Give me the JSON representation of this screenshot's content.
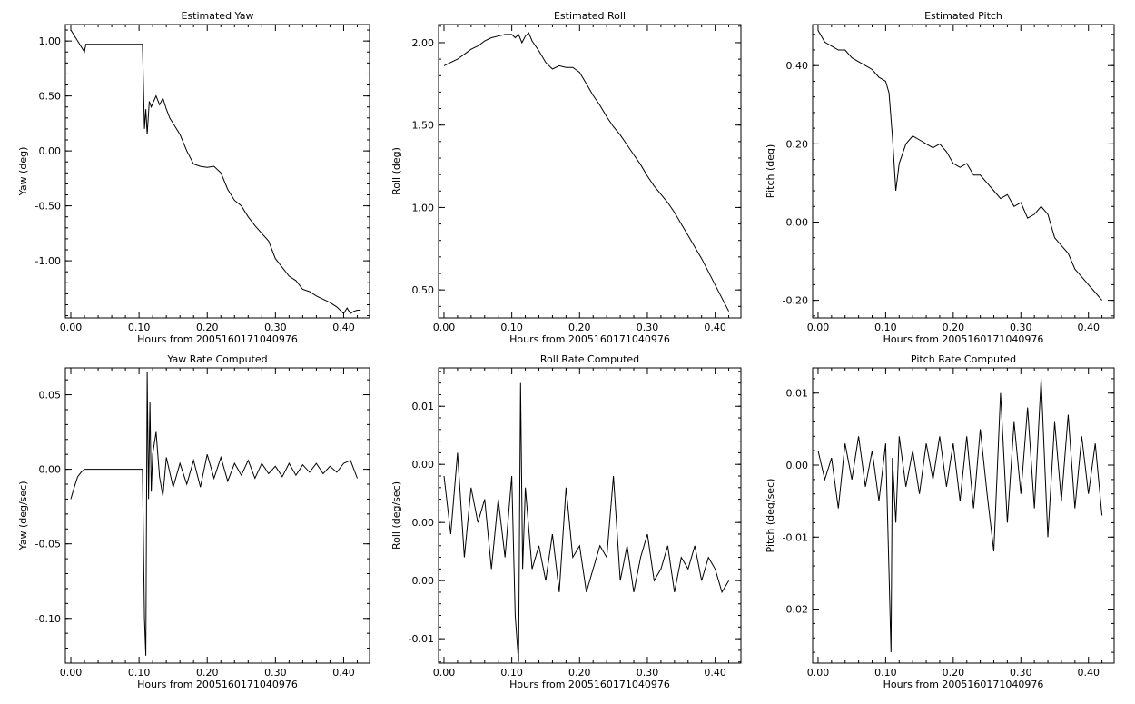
{
  "chart_data": [
    {
      "type": "line",
      "title": "Estimated Yaw",
      "xlabel": "Hours from 2005160171040976",
      "ylabel": "Yaw (deg)",
      "xlim": [
        -0.008,
        0.438
      ],
      "ylim": [
        -1.52,
        1.15
      ],
      "x_ticks": [
        0.0,
        0.1,
        0.2,
        0.3,
        0.4
      ],
      "x_tick_labels": [
        "0.00",
        "0.10",
        "0.20",
        "0.30",
        "0.40"
      ],
      "y_ticks": [
        -1.0,
        -0.5,
        0.0,
        0.5,
        1.0
      ],
      "y_tick_labels": [
        "-1.00",
        "-0.50",
        "0.00",
        "0.50",
        "1.00"
      ],
      "series": [
        {
          "x": [
            0.0,
            0.005,
            0.01,
            0.015,
            0.02,
            0.022,
            0.025,
            0.05,
            0.08,
            0.105,
            0.108,
            0.11,
            0.112,
            0.115,
            0.118,
            0.12,
            0.125,
            0.13,
            0.135,
            0.14,
            0.145,
            0.15,
            0.16,
            0.17,
            0.18,
            0.19,
            0.2,
            0.21,
            0.22,
            0.23,
            0.24,
            0.25,
            0.26,
            0.27,
            0.28,
            0.29,
            0.3,
            0.31,
            0.32,
            0.33,
            0.34,
            0.35,
            0.36,
            0.37,
            0.38,
            0.39,
            0.4,
            0.405,
            0.41,
            0.415,
            0.42,
            0.425
          ],
          "y": [
            1.1,
            1.05,
            1.0,
            0.95,
            0.9,
            0.97,
            0.97,
            0.97,
            0.97,
            0.97,
            0.2,
            0.38,
            0.15,
            0.45,
            0.4,
            0.43,
            0.5,
            0.42,
            0.48,
            0.38,
            0.3,
            0.25,
            0.15,
            0.0,
            -0.12,
            -0.14,
            -0.15,
            -0.14,
            -0.2,
            -0.35,
            -0.45,
            -0.5,
            -0.6,
            -0.68,
            -0.75,
            -0.82,
            -0.98,
            -1.06,
            -1.14,
            -1.18,
            -1.26,
            -1.28,
            -1.32,
            -1.35,
            -1.38,
            -1.42,
            -1.48,
            -1.43,
            -1.48,
            -1.46,
            -1.45,
            -1.45
          ]
        }
      ]
    },
    {
      "type": "line",
      "title": "Estimated Roll",
      "xlabel": "Hours from 2005160171040976",
      "ylabel": "Roll (deg)",
      "xlim": [
        -0.008,
        0.438
      ],
      "ylim": [
        0.33,
        2.11
      ],
      "x_ticks": [
        0.0,
        0.1,
        0.2,
        0.3,
        0.4
      ],
      "x_tick_labels": [
        "0.00",
        "0.10",
        "0.20",
        "0.30",
        "0.40"
      ],
      "y_ticks": [
        0.5,
        1.0,
        1.5,
        2.0
      ],
      "y_tick_labels": [
        "0.50",
        "1.00",
        "1.50",
        "2.00"
      ],
      "series": [
        {
          "x": [
            0.0,
            0.01,
            0.02,
            0.03,
            0.04,
            0.05,
            0.06,
            0.07,
            0.08,
            0.09,
            0.1,
            0.105,
            0.11,
            0.115,
            0.12,
            0.125,
            0.13,
            0.14,
            0.15,
            0.16,
            0.17,
            0.18,
            0.19,
            0.2,
            0.21,
            0.22,
            0.23,
            0.24,
            0.25,
            0.26,
            0.27,
            0.28,
            0.29,
            0.3,
            0.31,
            0.32,
            0.33,
            0.34,
            0.35,
            0.36,
            0.37,
            0.38,
            0.39,
            0.4,
            0.41,
            0.42
          ],
          "y": [
            1.86,
            1.88,
            1.9,
            1.93,
            1.96,
            1.98,
            2.01,
            2.03,
            2.04,
            2.05,
            2.05,
            2.03,
            2.05,
            2.0,
            2.04,
            2.06,
            2.01,
            1.95,
            1.88,
            1.84,
            1.86,
            1.85,
            1.85,
            1.82,
            1.75,
            1.68,
            1.62,
            1.55,
            1.49,
            1.44,
            1.38,
            1.32,
            1.26,
            1.19,
            1.13,
            1.08,
            1.03,
            0.97,
            0.9,
            0.83,
            0.76,
            0.69,
            0.61,
            0.53,
            0.45,
            0.37
          ]
        }
      ]
    },
    {
      "type": "line",
      "title": "Estimated Pitch",
      "xlabel": "Hours from 2005160171040976",
      "ylabel": "Pitch (deg)",
      "xlim": [
        -0.008,
        0.438
      ],
      "ylim": [
        -0.245,
        0.505
      ],
      "x_ticks": [
        0.0,
        0.1,
        0.2,
        0.3,
        0.4
      ],
      "x_tick_labels": [
        "0.00",
        "0.10",
        "0.20",
        "0.30",
        "0.40"
      ],
      "y_ticks": [
        -0.2,
        0.0,
        0.2,
        0.4
      ],
      "y_tick_labels": [
        "-0.20",
        "0.00",
        "0.20",
        "0.40"
      ],
      "series": [
        {
          "x": [
            0.0,
            0.01,
            0.02,
            0.03,
            0.04,
            0.05,
            0.06,
            0.07,
            0.08,
            0.09,
            0.1,
            0.105,
            0.11,
            0.115,
            0.12,
            0.13,
            0.14,
            0.15,
            0.16,
            0.17,
            0.18,
            0.19,
            0.2,
            0.21,
            0.22,
            0.23,
            0.24,
            0.25,
            0.26,
            0.27,
            0.28,
            0.29,
            0.3,
            0.31,
            0.32,
            0.33,
            0.34,
            0.35,
            0.36,
            0.37,
            0.38,
            0.39,
            0.4,
            0.41,
            0.42
          ],
          "y": [
            0.49,
            0.46,
            0.45,
            0.44,
            0.44,
            0.42,
            0.41,
            0.4,
            0.39,
            0.37,
            0.36,
            0.33,
            0.22,
            0.08,
            0.15,
            0.2,
            0.22,
            0.21,
            0.2,
            0.19,
            0.2,
            0.18,
            0.15,
            0.14,
            0.15,
            0.12,
            0.12,
            0.1,
            0.08,
            0.06,
            0.07,
            0.04,
            0.05,
            0.01,
            0.02,
            0.04,
            0.02,
            -0.04,
            -0.06,
            -0.08,
            -0.12,
            -0.14,
            -0.16,
            -0.18,
            -0.2
          ]
        }
      ]
    },
    {
      "type": "line",
      "title": "Yaw Rate Computed",
      "xlabel": "Hours from 2005160171040976",
      "ylabel": "Yaw (deg/sec)",
      "xlim": [
        -0.008,
        0.438
      ],
      "ylim": [
        -0.13,
        0.068
      ],
      "x_ticks": [
        0.0,
        0.1,
        0.2,
        0.3,
        0.4
      ],
      "x_tick_labels": [
        "0.00",
        "0.10",
        "0.20",
        "0.30",
        "0.40"
      ],
      "y_ticks": [
        -0.1,
        -0.05,
        0.0,
        0.05
      ],
      "y_tick_labels": [
        "-0.10",
        "-0.05",
        "0.00",
        "0.05"
      ],
      "series": [
        {
          "x": [
            0.0,
            0.005,
            0.01,
            0.015,
            0.02,
            0.025,
            0.05,
            0.08,
            0.105,
            0.108,
            0.11,
            0.112,
            0.114,
            0.116,
            0.118,
            0.12,
            0.125,
            0.13,
            0.135,
            0.14,
            0.15,
            0.16,
            0.17,
            0.18,
            0.19,
            0.2,
            0.21,
            0.22,
            0.23,
            0.24,
            0.25,
            0.26,
            0.27,
            0.28,
            0.29,
            0.3,
            0.31,
            0.32,
            0.33,
            0.34,
            0.35,
            0.36,
            0.37,
            0.38,
            0.39,
            0.4,
            0.41,
            0.42
          ],
          "y": [
            -0.02,
            -0.012,
            -0.005,
            -0.002,
            0.0,
            0.0,
            0.0,
            0.0,
            0.0,
            -0.1,
            -0.125,
            0.065,
            -0.02,
            0.045,
            -0.015,
            0.01,
            0.025,
            -0.005,
            -0.018,
            0.008,
            -0.012,
            0.004,
            -0.01,
            0.006,
            -0.012,
            0.01,
            -0.006,
            0.008,
            -0.008,
            0.004,
            -0.004,
            0.006,
            -0.006,
            0.004,
            -0.003,
            0.002,
            -0.005,
            0.004,
            -0.004,
            0.003,
            -0.002,
            0.004,
            -0.003,
            0.002,
            -0.002,
            0.004,
            0.006,
            -0.006
          ]
        }
      ]
    },
    {
      "type": "line",
      "title": "Roll Rate Computed",
      "xlabel": "Hours from 2005160171040976",
      "ylabel": "Roll (deg/sec)",
      "xlim": [
        -0.008,
        0.438
      ],
      "ylim": [
        -0.0121,
        0.0133
      ],
      "x_ticks": [
        0.0,
        0.1,
        0.2,
        0.3,
        0.4
      ],
      "x_tick_labels": [
        "0.00",
        "0.10",
        "0.20",
        "0.30",
        "0.40"
      ],
      "y_ticks": [
        -0.01,
        -0.005,
        0.0,
        0.005,
        0.01
      ],
      "y_tick_labels": [
        "-0.01",
        "0.00",
        "0.00",
        "0.00",
        "0.01"
      ],
      "series": [
        {
          "x": [
            0.0,
            0.01,
            0.02,
            0.03,
            0.04,
            0.05,
            0.06,
            0.07,
            0.08,
            0.09,
            0.1,
            0.105,
            0.11,
            0.113,
            0.116,
            0.12,
            0.13,
            0.14,
            0.15,
            0.16,
            0.17,
            0.18,
            0.19,
            0.2,
            0.21,
            0.22,
            0.23,
            0.24,
            0.25,
            0.26,
            0.27,
            0.28,
            0.29,
            0.3,
            0.31,
            0.32,
            0.33,
            0.34,
            0.35,
            0.36,
            0.37,
            0.38,
            0.39,
            0.4,
            0.41,
            0.42
          ],
          "y": [
            0.004,
            -0.001,
            0.006,
            -0.003,
            0.003,
            0.0,
            0.002,
            -0.004,
            0.002,
            -0.003,
            0.004,
            -0.008,
            -0.012,
            0.012,
            -0.004,
            0.003,
            -0.004,
            -0.002,
            -0.005,
            -0.001,
            -0.006,
            0.003,
            -0.003,
            -0.002,
            -0.006,
            -0.004,
            -0.002,
            -0.003,
            0.004,
            -0.005,
            -0.002,
            -0.006,
            -0.003,
            -0.001,
            -0.005,
            -0.004,
            -0.002,
            -0.006,
            -0.003,
            -0.004,
            -0.002,
            -0.005,
            -0.003,
            -0.004,
            -0.006,
            -0.005
          ]
        }
      ]
    },
    {
      "type": "line",
      "title": "Pitch Rate Computed",
      "xlabel": "Hours from 2005160171040976",
      "ylabel": "Pitch (deg/sec)",
      "xlim": [
        -0.008,
        0.438
      ],
      "ylim": [
        -0.0275,
        0.0135
      ],
      "x_ticks": [
        0.0,
        0.1,
        0.2,
        0.3,
        0.4
      ],
      "x_tick_labels": [
        "0.00",
        "0.10",
        "0.20",
        "0.30",
        "0.40"
      ],
      "y_ticks": [
        -0.02,
        -0.01,
        0.0,
        0.01
      ],
      "y_tick_labels": [
        "-0.02",
        "-0.01",
        "0.00",
        "0.01"
      ],
      "series": [
        {
          "x": [
            0.0,
            0.01,
            0.02,
            0.03,
            0.04,
            0.05,
            0.06,
            0.07,
            0.08,
            0.09,
            0.1,
            0.105,
            0.108,
            0.11,
            0.115,
            0.12,
            0.13,
            0.14,
            0.15,
            0.16,
            0.17,
            0.18,
            0.19,
            0.2,
            0.21,
            0.22,
            0.23,
            0.24,
            0.25,
            0.26,
            0.27,
            0.28,
            0.29,
            0.3,
            0.31,
            0.32,
            0.33,
            0.34,
            0.35,
            0.36,
            0.37,
            0.38,
            0.39,
            0.4,
            0.41,
            0.42
          ],
          "y": [
            0.002,
            -0.002,
            0.001,
            -0.006,
            0.003,
            -0.002,
            0.004,
            -0.003,
            0.002,
            -0.005,
            0.003,
            -0.015,
            -0.026,
            0.001,
            -0.008,
            0.004,
            -0.003,
            0.002,
            -0.004,
            0.003,
            -0.002,
            0.004,
            -0.003,
            0.003,
            -0.005,
            0.004,
            -0.006,
            0.005,
            -0.004,
            -0.012,
            0.01,
            -0.008,
            0.006,
            -0.004,
            0.008,
            -0.006,
            0.012,
            -0.01,
            0.006,
            -0.005,
            0.007,
            -0.006,
            0.004,
            -0.004,
            0.003,
            -0.007
          ]
        }
      ]
    }
  ]
}
